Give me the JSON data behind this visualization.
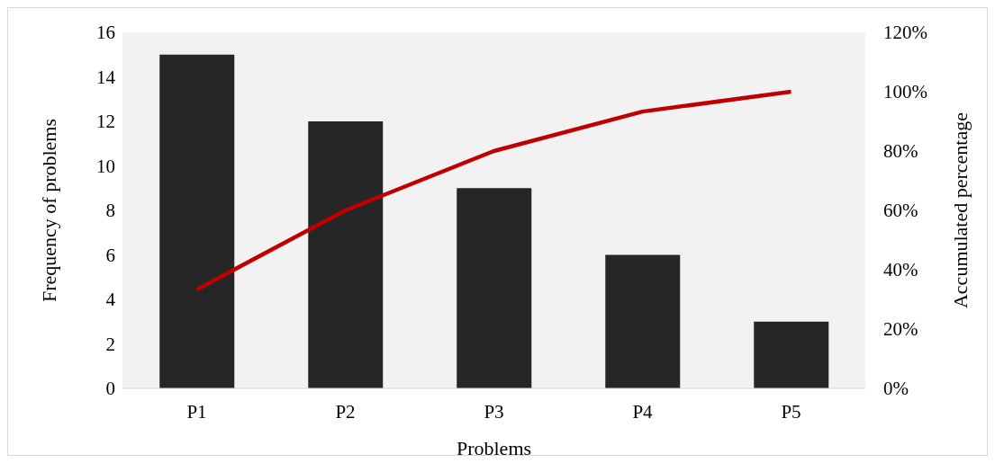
{
  "chart_data": {
    "type": "bar",
    "xlabel": "Problems",
    "ylabel": "Frequency of problems",
    "y2label": "Accumulated percentage",
    "categories": [
      "P1",
      "P2",
      "P3",
      "P4",
      "P5"
    ],
    "series": [
      {
        "color": "#262626",
        "values": [
          15,
          12,
          9,
          6,
          3
        ]
      },
      {
        "type": "line",
        "axis": "y2",
        "color": "#c00000",
        "values": [
          33.3,
          60,
          80,
          93.3,
          100
        ]
      }
    ],
    "ylim": [
      0,
      16
    ],
    "yticks": [
      0,
      2,
      4,
      6,
      8,
      10,
      12,
      14,
      16
    ],
    "y2lim": [
      0,
      120
    ],
    "y2ticks": [
      {
        "value": 0,
        "label": "0%"
      },
      {
        "value": 20,
        "label": "20%"
      },
      {
        "value": 40,
        "label": "40%"
      },
      {
        "value": 60,
        "label": "60%"
      },
      {
        "value": 80,
        "label": "80%"
      },
      {
        "value": 100,
        "label": "100%"
      },
      {
        "value": 120,
        "label": "120%"
      }
    ],
    "grid": false,
    "legend": false,
    "marker": "none",
    "line_style": "solid"
  }
}
